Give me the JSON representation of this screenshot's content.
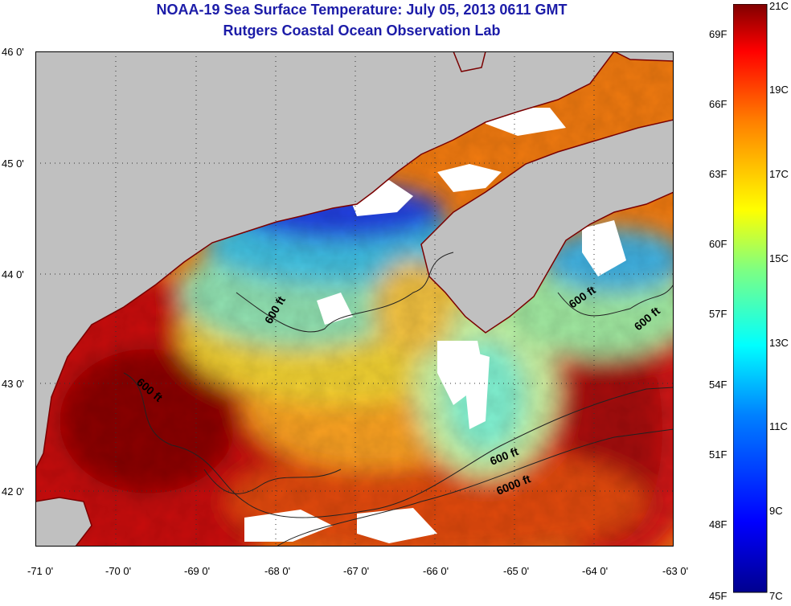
{
  "title": "NOAA-19 Sea Surface Temperature:  July 05, 2013 0611 GMT",
  "subtitle": "Rutgers Coastal Ocean Observation Lab",
  "axes": {
    "lat_ticks": [
      "46 0'",
      "45 0'",
      "44 0'",
      "43 0'",
      "42 0'"
    ],
    "lon_ticks": [
      "-71 0'",
      "-70 0'",
      "-69 0'",
      "-68 0'",
      "-67 0'",
      "-66 0'",
      "-65 0'",
      "-64 0'",
      "-63 0'"
    ],
    "lat_range": [
      41.5,
      46.0
    ],
    "lon_range": [
      -71.0,
      -63.0
    ]
  },
  "colorbar": {
    "fahrenheit_labels": [
      "69F",
      "66F",
      "63F",
      "60F",
      "57F",
      "54F",
      "51F",
      "48F",
      "45F"
    ],
    "celsius_labels": [
      "21C",
      "19C",
      "17C",
      "15C",
      "13C",
      "11C",
      "9C",
      "7C"
    ],
    "range_c": [
      7,
      21
    ],
    "colors": [
      "#00008f",
      "#0000ff",
      "#0080ff",
      "#00ffff",
      "#80ff80",
      "#ffff00",
      "#ff8000",
      "#ff0000",
      "#800000"
    ]
  },
  "map": {
    "land_color": "#c0c0c0",
    "cloud_color": "#ffffff",
    "contour_labels": [
      "600 ft",
      "600 ft",
      "600 ft",
      "600 ft",
      "600 ft",
      "6000 ft"
    ]
  }
}
